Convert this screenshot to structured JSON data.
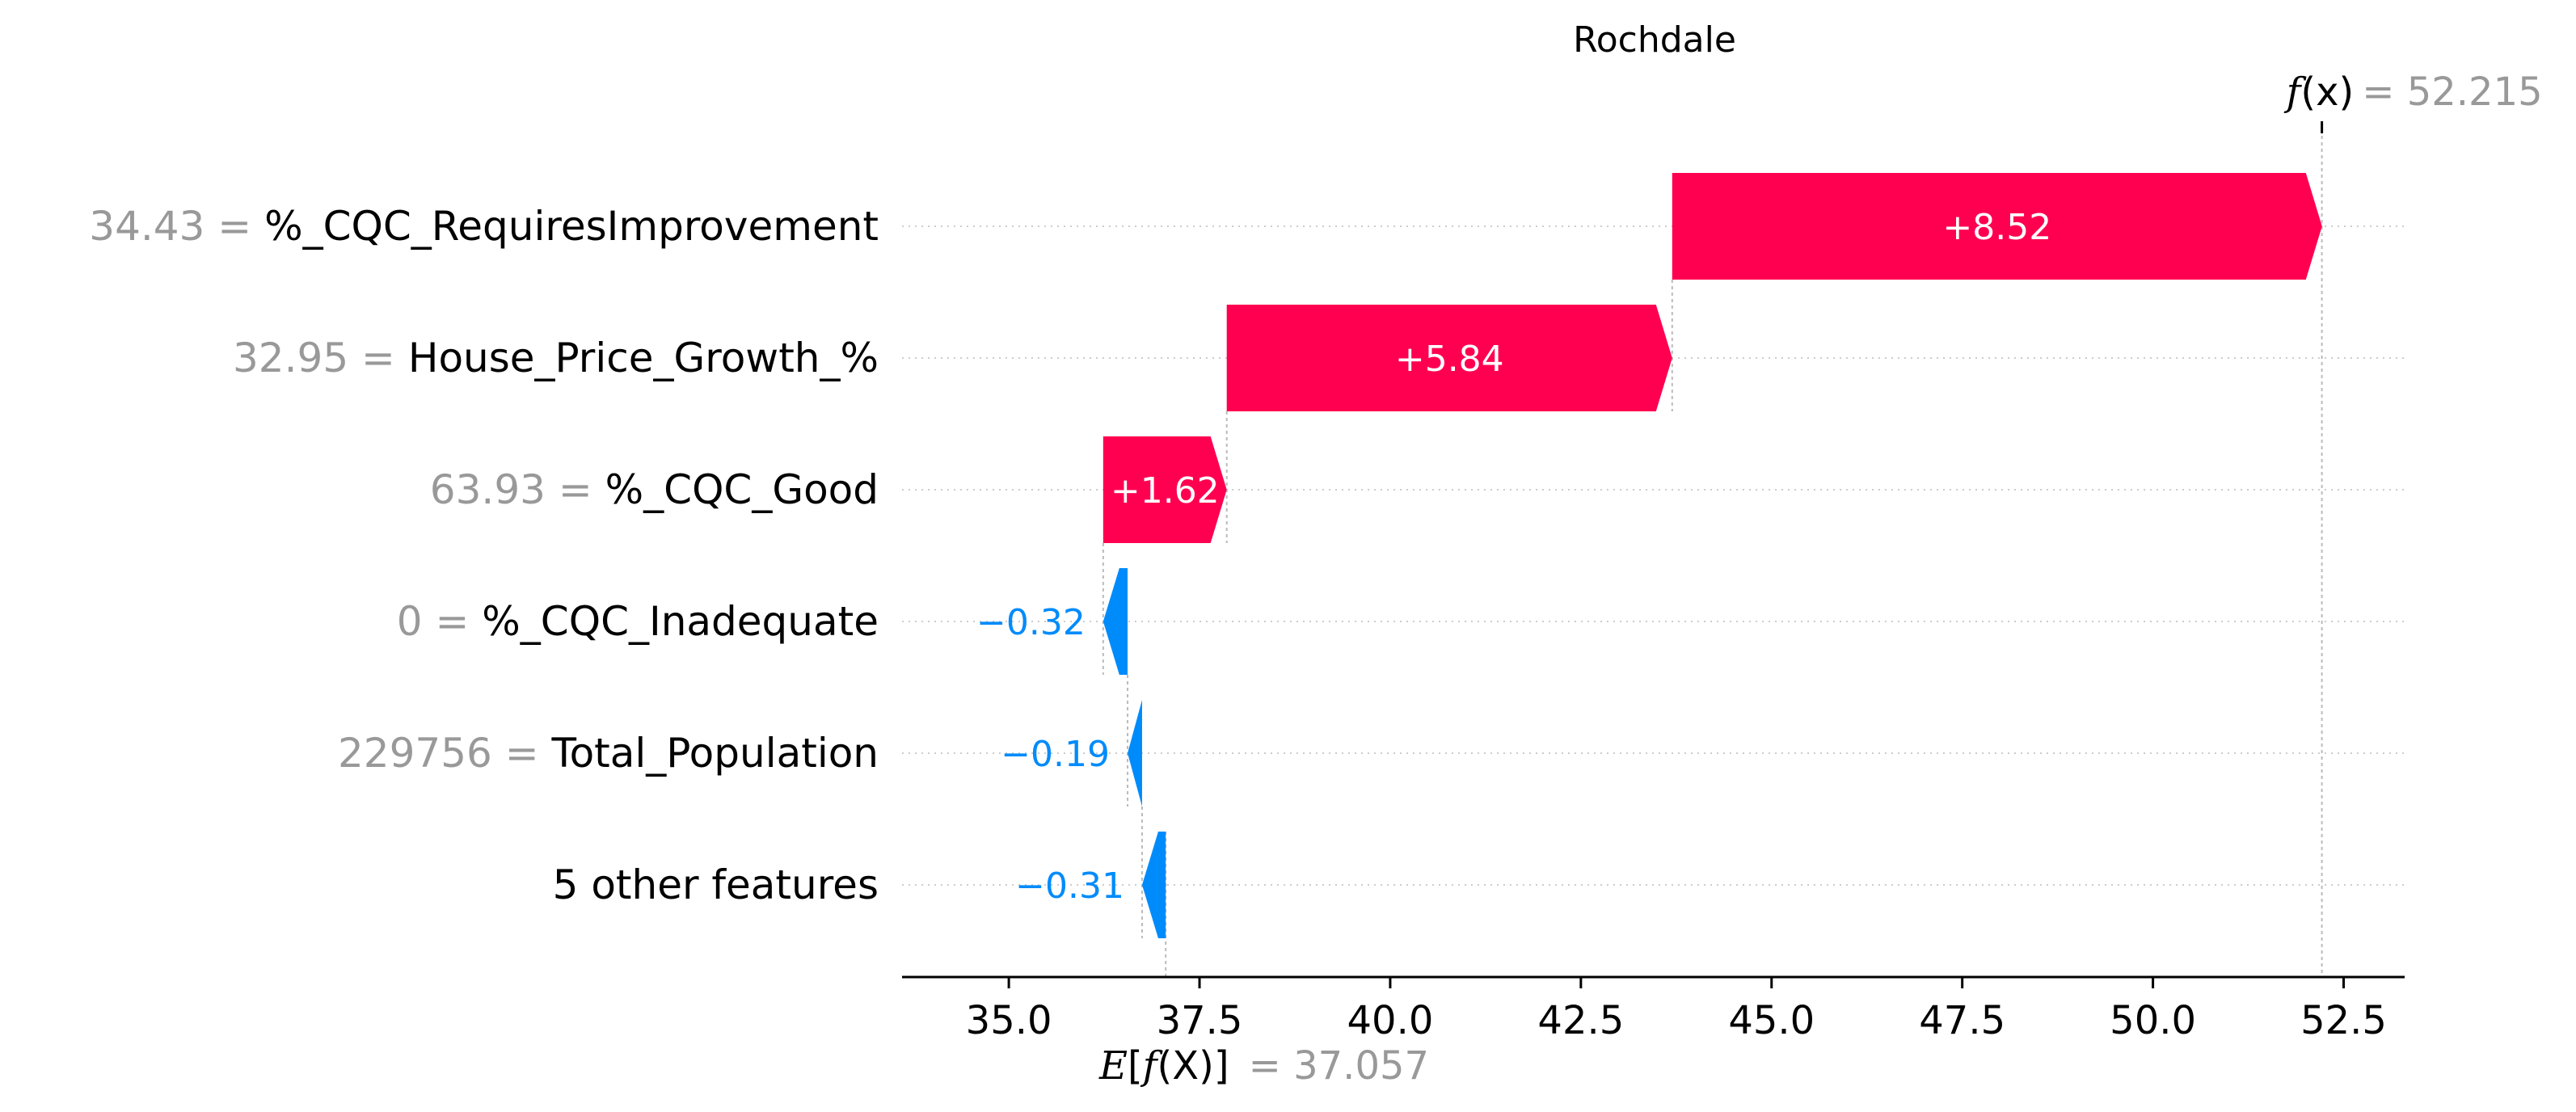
{
  "chart_data": {
    "type": "bar",
    "subtype": "waterfall",
    "title": "Rochdale",
    "base_value": {
      "label": "E[f(X)]",
      "prefix": "E[",
      "func": "f",
      "arg": "(X)",
      "suffix": "]",
      "value": 37.057,
      "display": "= 37.057"
    },
    "output_value": {
      "label": "f(x)",
      "func": "f",
      "arg": "(x)",
      "value": 52.215,
      "display": "= 52.215"
    },
    "rows": [
      {
        "feature_value": "34.43 =",
        "feature_name": "%_CQC_RequiresImprovement",
        "contribution": 8.52,
        "label": "+8.52"
      },
      {
        "feature_value": "32.95 =",
        "feature_name": "House_Price_Growth_%",
        "contribution": 5.84,
        "label": "+5.84"
      },
      {
        "feature_value": "63.93 =",
        "feature_name": "%_CQC_Good",
        "contribution": 1.62,
        "label": "+1.62"
      },
      {
        "feature_value": "0 =",
        "feature_name": "%_CQC_Inadequate",
        "contribution": -0.32,
        "label": "−0.32"
      },
      {
        "feature_value": "229756 =",
        "feature_name": "Total_Population",
        "contribution": -0.19,
        "label": "−0.19"
      },
      {
        "feature_value": "",
        "feature_name": "5 other features",
        "contribution": -0.31,
        "label": "−0.31"
      }
    ],
    "xlim": [
      33.6,
      53.3
    ],
    "x_ticks": [
      35.0,
      37.5,
      40.0,
      42.5,
      45.0,
      47.5,
      50.0,
      52.5
    ],
    "x_tick_labels": [
      "35.0",
      "37.5",
      "40.0",
      "42.5",
      "45.0",
      "47.5",
      "50.0",
      "52.5"
    ],
    "grid": "horizontal dotted",
    "colors": {
      "positive": "#ff0051",
      "negative": "#008bfb",
      "feature_value": "#999999",
      "text": "#000000"
    }
  }
}
